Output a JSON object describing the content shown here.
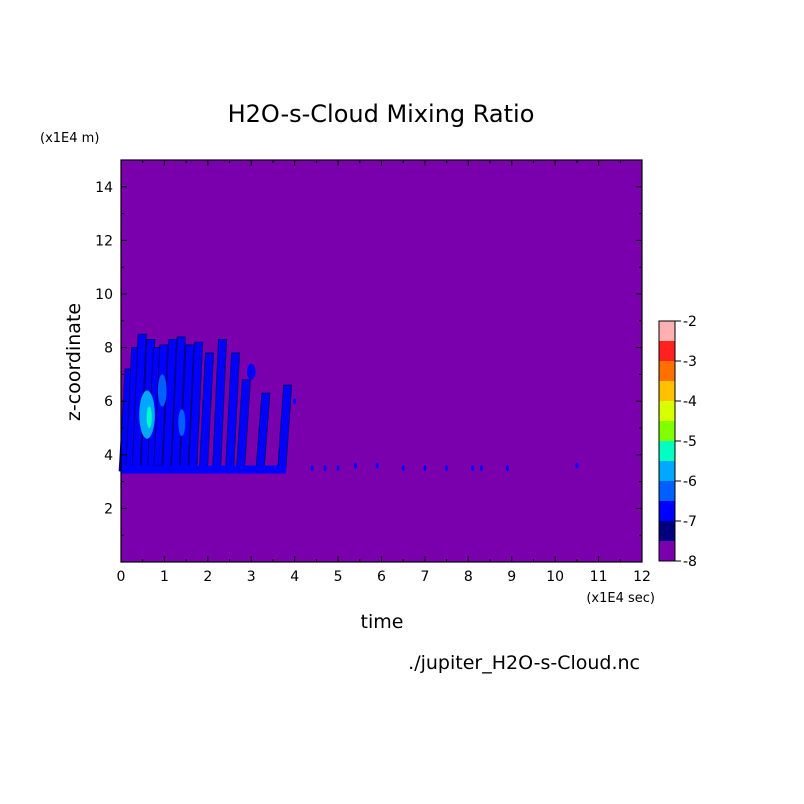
{
  "chart_data": {
    "type": "heatmap",
    "title": "H2O-s-Cloud Mixing Ratio",
    "xlabel": "time",
    "ylabel": "z-coordinate",
    "x_unit": "(x1E4 sec)",
    "y_unit": "(x1E4 m)",
    "source": "./jupiter_H2O-s-Cloud.nc",
    "xlim": [
      0,
      12
    ],
    "ylim": [
      0,
      15
    ],
    "x_ticks": [
      0,
      1,
      2,
      3,
      4,
      5,
      6,
      7,
      8,
      9,
      10,
      11,
      12
    ],
    "y_ticks": [
      2,
      4,
      6,
      8,
      10,
      12,
      14
    ],
    "background_level": -8,
    "colorbar": {
      "levels": [
        -8,
        -7.5,
        -7,
        -6.5,
        -6,
        -5.5,
        -5,
        -4.5,
        -4,
        -3.5,
        -3,
        -2.5,
        -2
      ],
      "tick_labels": [
        "-2",
        "-3",
        "-4",
        "-5",
        "-6",
        "-7",
        "-8"
      ],
      "colors": [
        "#7b00ad",
        "#00007f",
        "#0000ff",
        "#0060ff",
        "#00a8ff",
        "#00ffc0",
        "#7fff00",
        "#d8ff00",
        "#ffc000",
        "#ff7000",
        "#ff2020",
        "#ffb0b0"
      ]
    },
    "streaks": [
      {
        "x": 0.05,
        "y0": 3.4,
        "y1": 7.2,
        "level": -7
      },
      {
        "x": 0.2,
        "y0": 3.4,
        "y1": 8.0,
        "level": -7
      },
      {
        "x": 0.35,
        "y0": 3.5,
        "y1": 8.5,
        "level": -7
      },
      {
        "x": 0.55,
        "y0": 3.4,
        "y1": 8.3,
        "level": -7
      },
      {
        "x": 0.7,
        "y0": 3.4,
        "y1": 8.0,
        "level": -7
      },
      {
        "x": 0.85,
        "y0": 3.6,
        "y1": 8.1,
        "level": -7
      },
      {
        "x": 1.05,
        "y0": 3.4,
        "y1": 8.3,
        "level": -7
      },
      {
        "x": 1.25,
        "y0": 3.4,
        "y1": 8.4,
        "level": -7
      },
      {
        "x": 1.45,
        "y0": 3.5,
        "y1": 8.1,
        "level": -7
      },
      {
        "x": 1.65,
        "y0": 3.4,
        "y1": 8.2,
        "level": -7
      },
      {
        "x": 1.9,
        "y0": 3.5,
        "y1": 7.8,
        "level": -7
      },
      {
        "x": 2.2,
        "y0": 3.4,
        "y1": 8.3,
        "level": -7
      },
      {
        "x": 2.5,
        "y0": 3.4,
        "y1": 7.8,
        "level": -7
      },
      {
        "x": 2.75,
        "y0": 3.4,
        "y1": 6.8,
        "level": -7
      },
      {
        "x": 3.2,
        "y0": 3.4,
        "y1": 6.3,
        "level": -7
      },
      {
        "x": 3.7,
        "y0": 3.4,
        "y1": 6.6,
        "level": -7
      }
    ],
    "blobs": [
      {
        "x": 0.6,
        "y": 5.5,
        "rx": 0.18,
        "ry": 0.9,
        "level": -6
      },
      {
        "x": 0.65,
        "y": 5.4,
        "rx": 0.06,
        "ry": 0.4,
        "level": -5.5
      },
      {
        "x": 0.95,
        "y": 6.4,
        "rx": 0.1,
        "ry": 0.6,
        "level": -6.5
      },
      {
        "x": 1.4,
        "y": 5.2,
        "rx": 0.08,
        "ry": 0.5,
        "level": -6.5
      },
      {
        "x": 3.0,
        "y": 7.1,
        "rx": 0.1,
        "ry": 0.3,
        "level": -7
      }
    ],
    "dots": [
      {
        "x": 4.0,
        "y": 6.0
      },
      {
        "x": 4.4,
        "y": 3.5
      },
      {
        "x": 4.7,
        "y": 3.5
      },
      {
        "x": 5.0,
        "y": 3.5
      },
      {
        "x": 5.4,
        "y": 3.6
      },
      {
        "x": 5.9,
        "y": 3.6
      },
      {
        "x": 6.5,
        "y": 3.5
      },
      {
        "x": 7.0,
        "y": 3.5
      },
      {
        "x": 7.5,
        "y": 3.5
      },
      {
        "x": 8.1,
        "y": 3.5
      },
      {
        "x": 8.3,
        "y": 3.5
      },
      {
        "x": 8.9,
        "y": 3.5
      },
      {
        "x": 10.5,
        "y": 3.6
      }
    ],
    "grid": false,
    "legend": "colorbar-right"
  }
}
